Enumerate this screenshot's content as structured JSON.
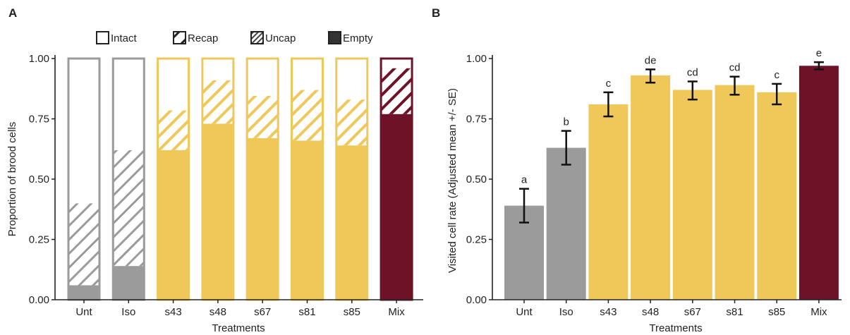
{
  "colors": {
    "control": "#9b9b9b",
    "single": "#f0c85a",
    "mix": "#6e1228",
    "hatch_control": "#9b9b9b",
    "hatch_single": "#f0c85a",
    "hatch_mix": "#6e1228",
    "uncap_fill": "#444444",
    "empty_fill": "#333333",
    "axis": "#222222",
    "error_bar": "#111111"
  },
  "chart_data": [
    {
      "panel": "A",
      "type": "bar",
      "stacked": true,
      "categories": [
        "Unt",
        "Iso",
        "s43",
        "s48",
        "s67",
        "s81",
        "s85",
        "Mix"
      ],
      "category_groups": [
        "control",
        "control",
        "single",
        "single",
        "single",
        "single",
        "single",
        "mix"
      ],
      "legend": [
        "Intact",
        "Recap",
        "Uncap",
        "Empty"
      ],
      "legend_position": "top",
      "series": [
        {
          "name": "Empty",
          "values": [
            0.06,
            0.14,
            0.62,
            0.73,
            0.67,
            0.66,
            0.64,
            0.77
          ]
        },
        {
          "name": "Uncap",
          "values": [
            0.34,
            0.48,
            0.0,
            0.0,
            0.0,
            0.0,
            0.0,
            0.0
          ]
        },
        {
          "name": "Recap",
          "values": [
            0.0,
            0.0,
            0.165,
            0.18,
            0.175,
            0.21,
            0.19,
            0.19
          ]
        },
        {
          "name": "Intact",
          "values": [
            0.6,
            0.38,
            0.215,
            0.09,
            0.155,
            0.13,
            0.17,
            0.04
          ]
        }
      ],
      "xlabel": "Treatments",
      "ylabel": "Proportion of brood cells",
      "ylim": [
        0,
        1
      ],
      "yticks": [
        "0.00",
        "0.25",
        "0.50",
        "0.75",
        "1.00"
      ],
      "grid": false
    },
    {
      "panel": "B",
      "type": "bar",
      "categories": [
        "Unt",
        "Iso",
        "s43",
        "s48",
        "s67",
        "s81",
        "s85",
        "Mix"
      ],
      "category_groups": [
        "control",
        "control",
        "single",
        "single",
        "single",
        "single",
        "single",
        "mix"
      ],
      "values": [
        0.39,
        0.63,
        0.81,
        0.93,
        0.87,
        0.89,
        0.86,
        0.97
      ],
      "error_low": [
        0.32,
        0.56,
        0.76,
        0.9,
        0.83,
        0.85,
        0.81,
        0.955
      ],
      "error_high": [
        0.46,
        0.7,
        0.86,
        0.955,
        0.905,
        0.925,
        0.895,
        0.985
      ],
      "significance_letters": [
        "a",
        "b",
        "c",
        "de",
        "cd",
        "cd",
        "c",
        "e"
      ],
      "xlabel": "Treatments",
      "ylabel": "Visited cell rate (Adjusted mean +/- SE)",
      "ylim": [
        0,
        1
      ],
      "yticks": [
        "0.00",
        "0.25",
        "0.50",
        "0.75",
        "1.00"
      ],
      "grid": false
    }
  ]
}
